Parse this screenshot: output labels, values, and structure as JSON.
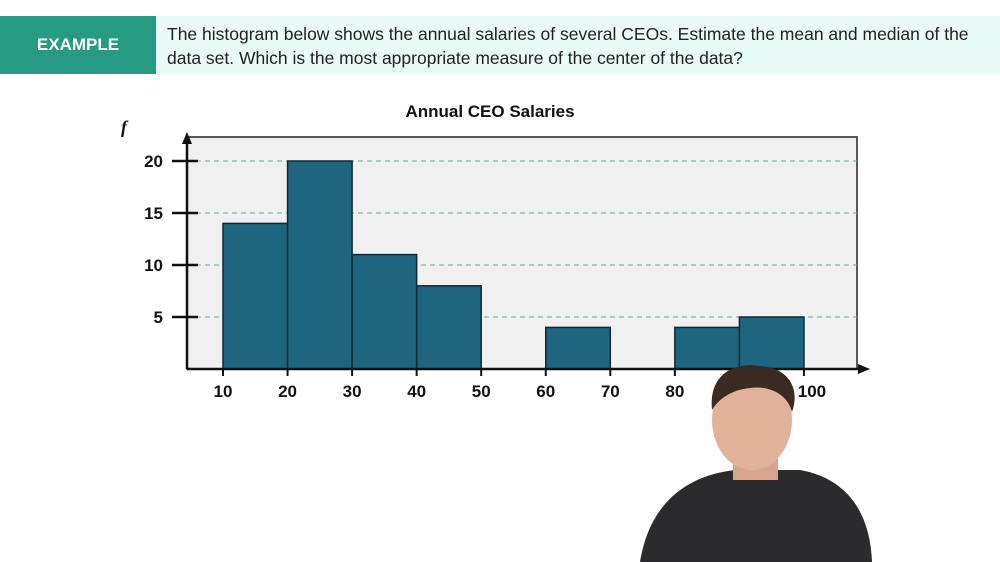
{
  "header": {
    "tag": "EXAMPLE",
    "question": "The histogram below shows the annual salaries of several CEOs. Estimate the mean and median of the data set. Which is the most appropriate measure of the center of the data?"
  },
  "chart_data": {
    "type": "bar",
    "title": "Annual CEO Salaries",
    "ylabel": "f",
    "xlabel": "",
    "bins": [
      [
        10,
        20
      ],
      [
        20,
        30
      ],
      [
        30,
        40
      ],
      [
        40,
        50
      ],
      [
        60,
        70
      ],
      [
        80,
        90
      ],
      [
        90,
        100
      ]
    ],
    "values": [
      14,
      20,
      11,
      8,
      4,
      4,
      5
    ],
    "x_ticks": [
      10,
      20,
      30,
      40,
      50,
      60,
      70,
      80,
      90,
      100
    ],
    "x_tick_labels": [
      "10",
      "20",
      "30",
      "40",
      "50",
      "60",
      "70",
      "80",
      "",
      "100"
    ],
    "y_ticks": [
      5,
      10,
      15,
      20
    ],
    "y_tick_labels": [
      "5",
      "10",
      "15",
      "20"
    ],
    "xlim": [
      4.5,
      109
    ],
    "ylim": [
      0,
      22
    ],
    "grid": "horizontal dashed",
    "colors": {
      "bar": "#1e6580",
      "plot_bg": "#f0f0f0",
      "grid": "#6aa89a"
    }
  }
}
